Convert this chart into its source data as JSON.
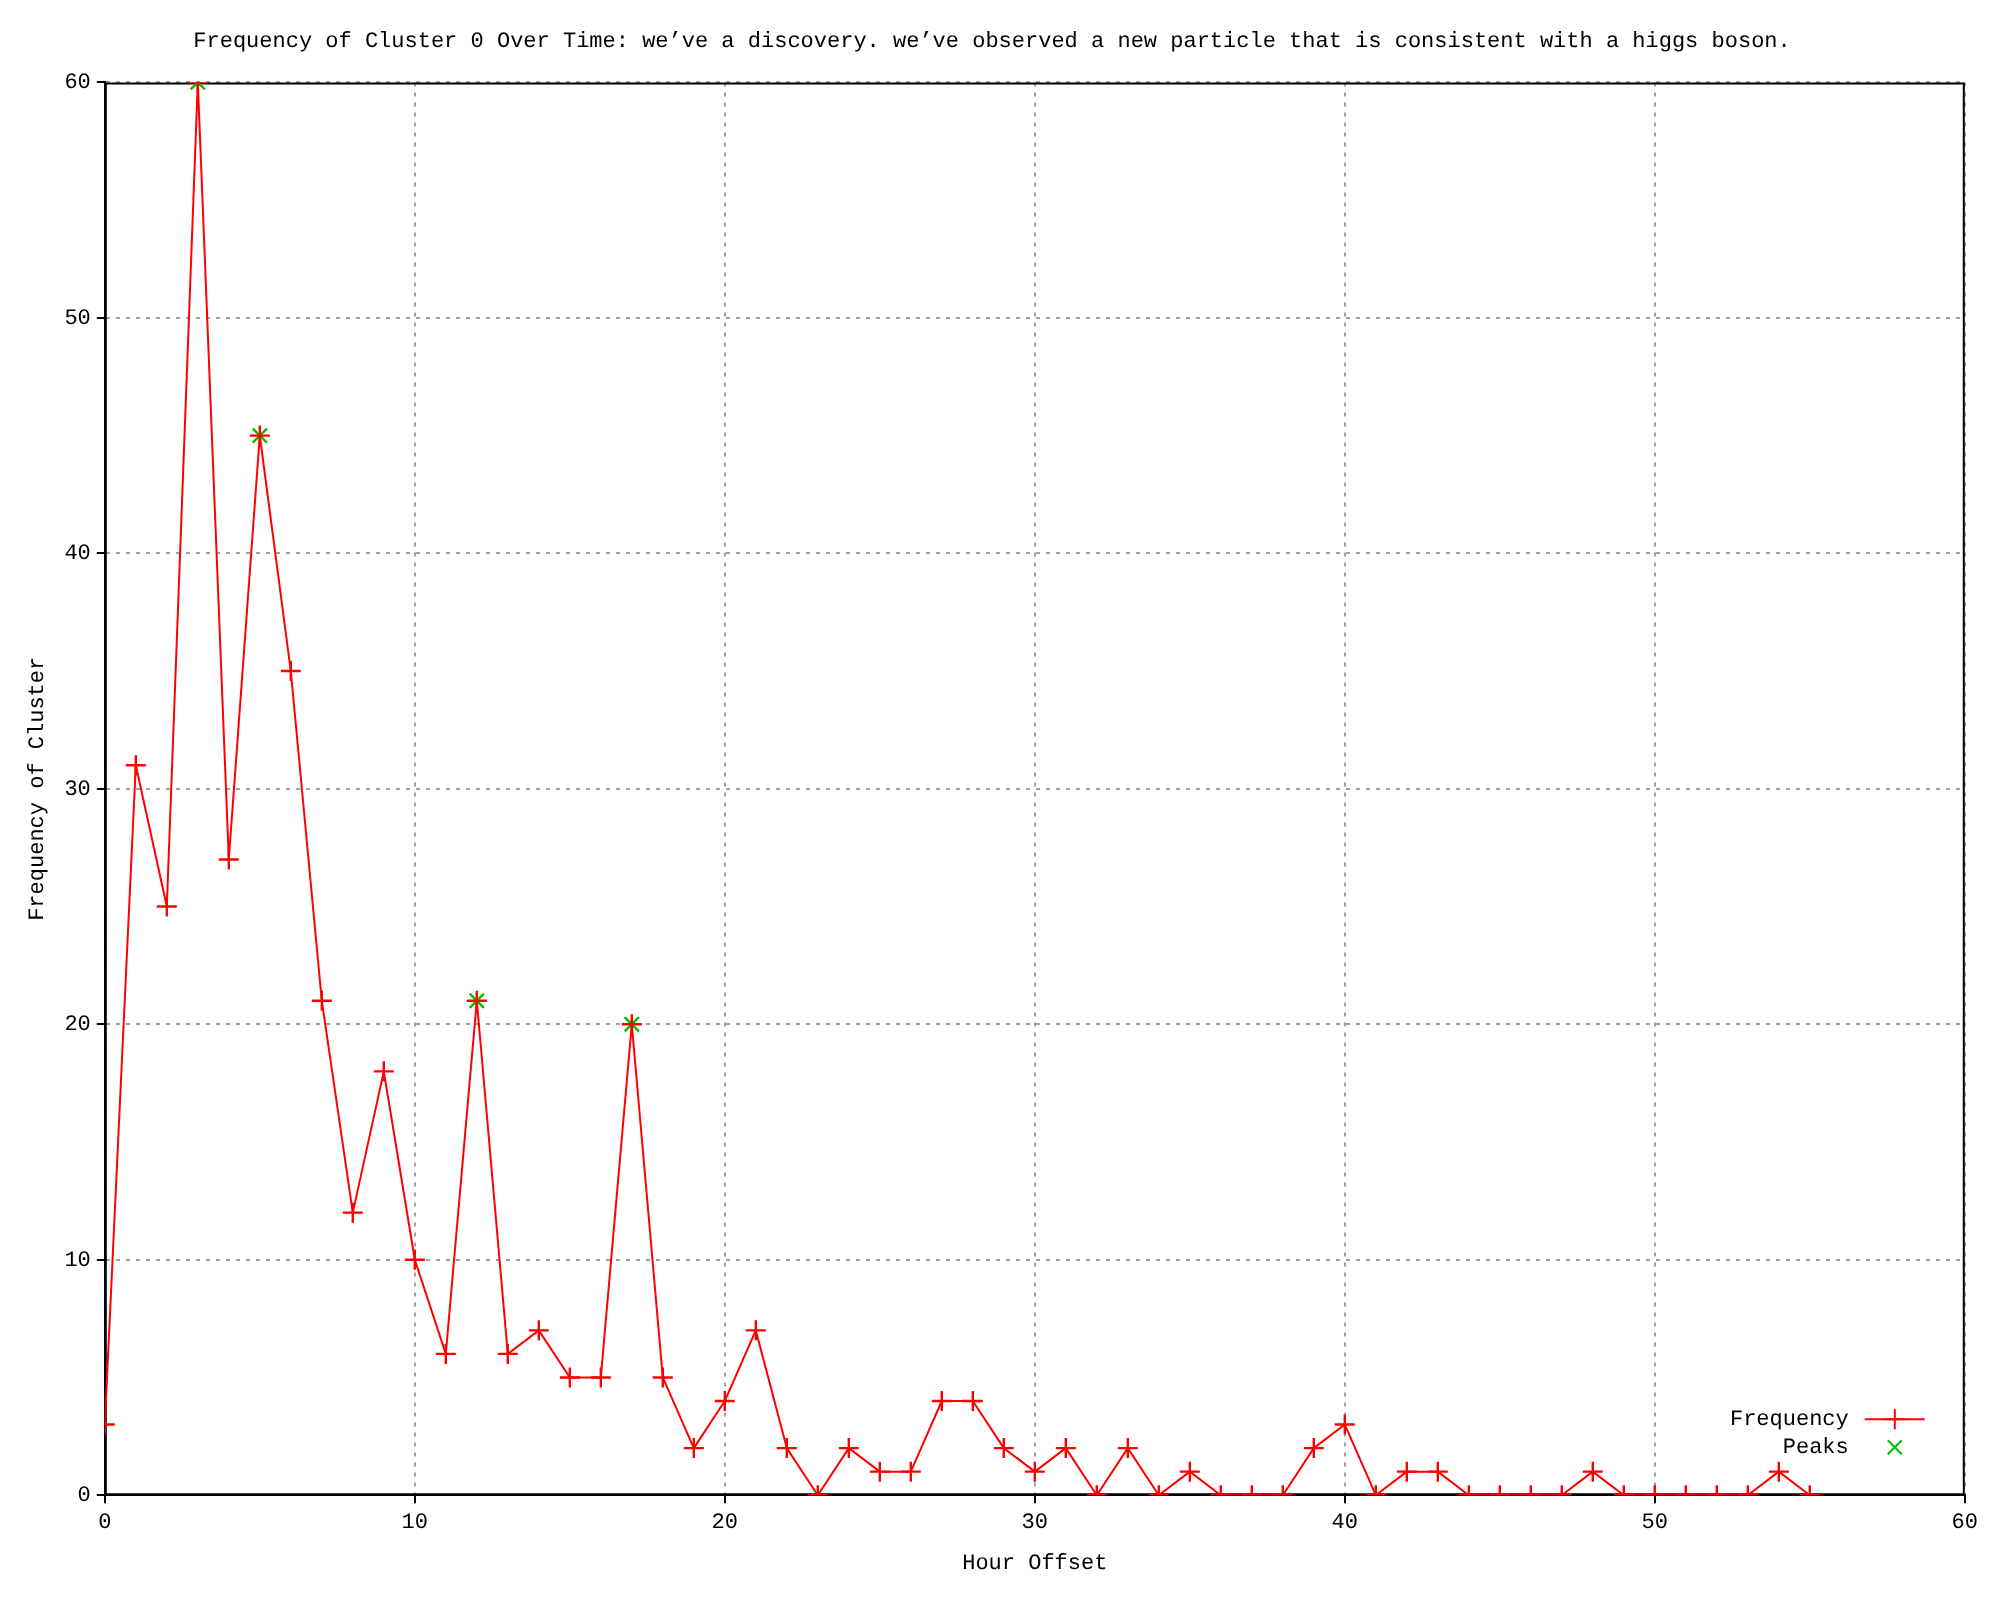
{
  "chart_data": {
    "type": "line",
    "title": "Frequency of Cluster 0 Over Time: we’ve a discovery. we’ve observed a new particle that is consistent with a higgs boson.",
    "xlabel": "Hour Offset",
    "ylabel": "Frequency of Cluster",
    "xlim": [
      0,
      60
    ],
    "xticks": [
      0,
      10,
      20,
      30,
      40,
      50,
      60
    ],
    "ylim": [
      0,
      60
    ],
    "yticks": [
      0,
      10,
      20,
      30,
      40,
      50,
      60
    ],
    "grid": true,
    "legend": "bottom right",
    "series": [
      {
        "name": "Frequency",
        "color": "#ff0000",
        "marker": "cross",
        "x": [
          0,
          1,
          2,
          3,
          4,
          5,
          6,
          7,
          8,
          9,
          10,
          11,
          12,
          13,
          14,
          15,
          16,
          17,
          18,
          19,
          20,
          21,
          22,
          23,
          24,
          25,
          26,
          27,
          28,
          29,
          30,
          31,
          32,
          33,
          34,
          35,
          36,
          37,
          38,
          39,
          40,
          41,
          42,
          43,
          44,
          45,
          46,
          47,
          48,
          49,
          50,
          51,
          52,
          53,
          54,
          55
        ],
        "values": [
          3,
          31,
          25,
          60,
          27,
          45,
          35,
          21,
          12,
          18,
          10,
          6,
          21,
          6,
          7,
          5,
          5,
          20,
          5,
          2,
          4,
          7,
          2,
          0,
          2,
          1,
          1,
          4,
          4,
          2,
          1,
          2,
          0,
          2,
          0,
          1,
          0,
          0,
          0,
          2,
          3,
          0,
          1,
          1,
          0,
          0,
          0,
          0,
          1,
          0,
          0,
          0,
          0,
          0,
          1,
          0
        ]
      },
      {
        "name": "Peaks",
        "type": "scatter",
        "color": "#00c000",
        "marker": "cross",
        "x": [
          3,
          5,
          12,
          17
        ],
        "values": [
          60,
          45,
          21,
          20
        ]
      }
    ]
  }
}
